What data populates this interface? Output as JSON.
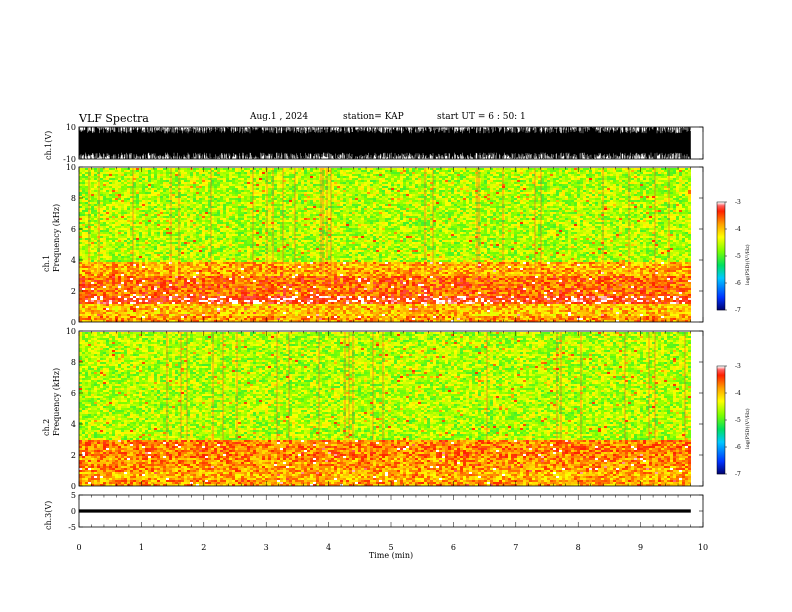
{
  "header": {
    "title": "VLF Spectra",
    "date": "Aug.1 , 2024",
    "station": "station= KAP",
    "start_ut": "start UT = 6 : 50: 1"
  },
  "colorbar_label": "log(PSD)(V²/Hz)",
  "colors": {
    "colormap": [
      "#00006a",
      "#0033ff",
      "#00c8ff",
      "#00e060",
      "#7cff00",
      "#ffff00",
      "#ffa000",
      "#ff2000",
      "#ff6060",
      "#ffffff"
    ],
    "trace": "#000000"
  },
  "chart_data": [
    {
      "type": "line",
      "name": "ch1-waveform",
      "ylabel": "ch.1(V)",
      "ylim": [
        -10,
        10
      ],
      "yticks": [
        "10",
        "-10"
      ],
      "x": [
        0,
        9.8
      ],
      "y_envelope": [
        -10,
        10
      ]
    },
    {
      "type": "heatmap",
      "name": "ch1-spectrogram",
      "ylabel": "ch.1\nFrequency (kHz)",
      "ylim": [
        0,
        10
      ],
      "yticks": [
        "0",
        "2",
        "4",
        "6",
        "8",
        "10"
      ],
      "xlim": [
        0,
        9.8
      ],
      "band_levels": [
        {
          "f": [
            0,
            0.5
          ],
          "level": -3.8
        },
        {
          "f": [
            0.5,
            1.2
          ],
          "level": -4.0
        },
        {
          "f": [
            1.2,
            1.8
          ],
          "level": -3.3
        },
        {
          "f": [
            1.8,
            3.0
          ],
          "level": -3.6
        },
        {
          "f": [
            3.0,
            4.0
          ],
          "level": -3.9
        },
        {
          "f": [
            4.0,
            10.0
          ],
          "level": -4.6
        }
      ],
      "colorbar": {
        "range": [
          -7,
          -3
        ],
        "ticks": [
          "-3",
          "-4",
          "-5",
          "-6",
          "-7"
        ]
      }
    },
    {
      "type": "heatmap",
      "name": "ch2-spectrogram",
      "ylabel": "ch.2\nFrequency (kHz)",
      "ylim": [
        0,
        10
      ],
      "yticks": [
        "0",
        "2",
        "4",
        "6",
        "8",
        "10"
      ],
      "xlim": [
        0,
        9.8
      ],
      "band_levels": [
        {
          "f": [
            0,
            0.5
          ],
          "level": -3.8
        },
        {
          "f": [
            0.5,
            1.0
          ],
          "level": -3.9
        },
        {
          "f": [
            1.0,
            1.9
          ],
          "level": -3.8
        },
        {
          "f": [
            1.9,
            3.0
          ],
          "level": -3.7
        },
        {
          "f": [
            3.0,
            10.0
          ],
          "level": -4.6
        }
      ],
      "colorbar": {
        "range": [
          -7,
          -3
        ],
        "ticks": [
          "-3",
          "-4",
          "-5",
          "-6",
          "-7"
        ]
      }
    },
    {
      "type": "line",
      "name": "ch3-waveform",
      "ylabel": "ch.3(V)",
      "ylim": [
        -5,
        5
      ],
      "yticks": [
        "5",
        "0",
        "-5"
      ],
      "x": [
        0,
        9.8
      ],
      "y_envelope": [
        -0.5,
        0.5
      ]
    }
  ],
  "x_axis": {
    "label": "Time (min)",
    "ticks": [
      "0",
      "1",
      "2",
      "3",
      "4",
      "5",
      "6",
      "7",
      "8",
      "9",
      "10"
    ],
    "xlim": [
      0,
      10
    ]
  }
}
